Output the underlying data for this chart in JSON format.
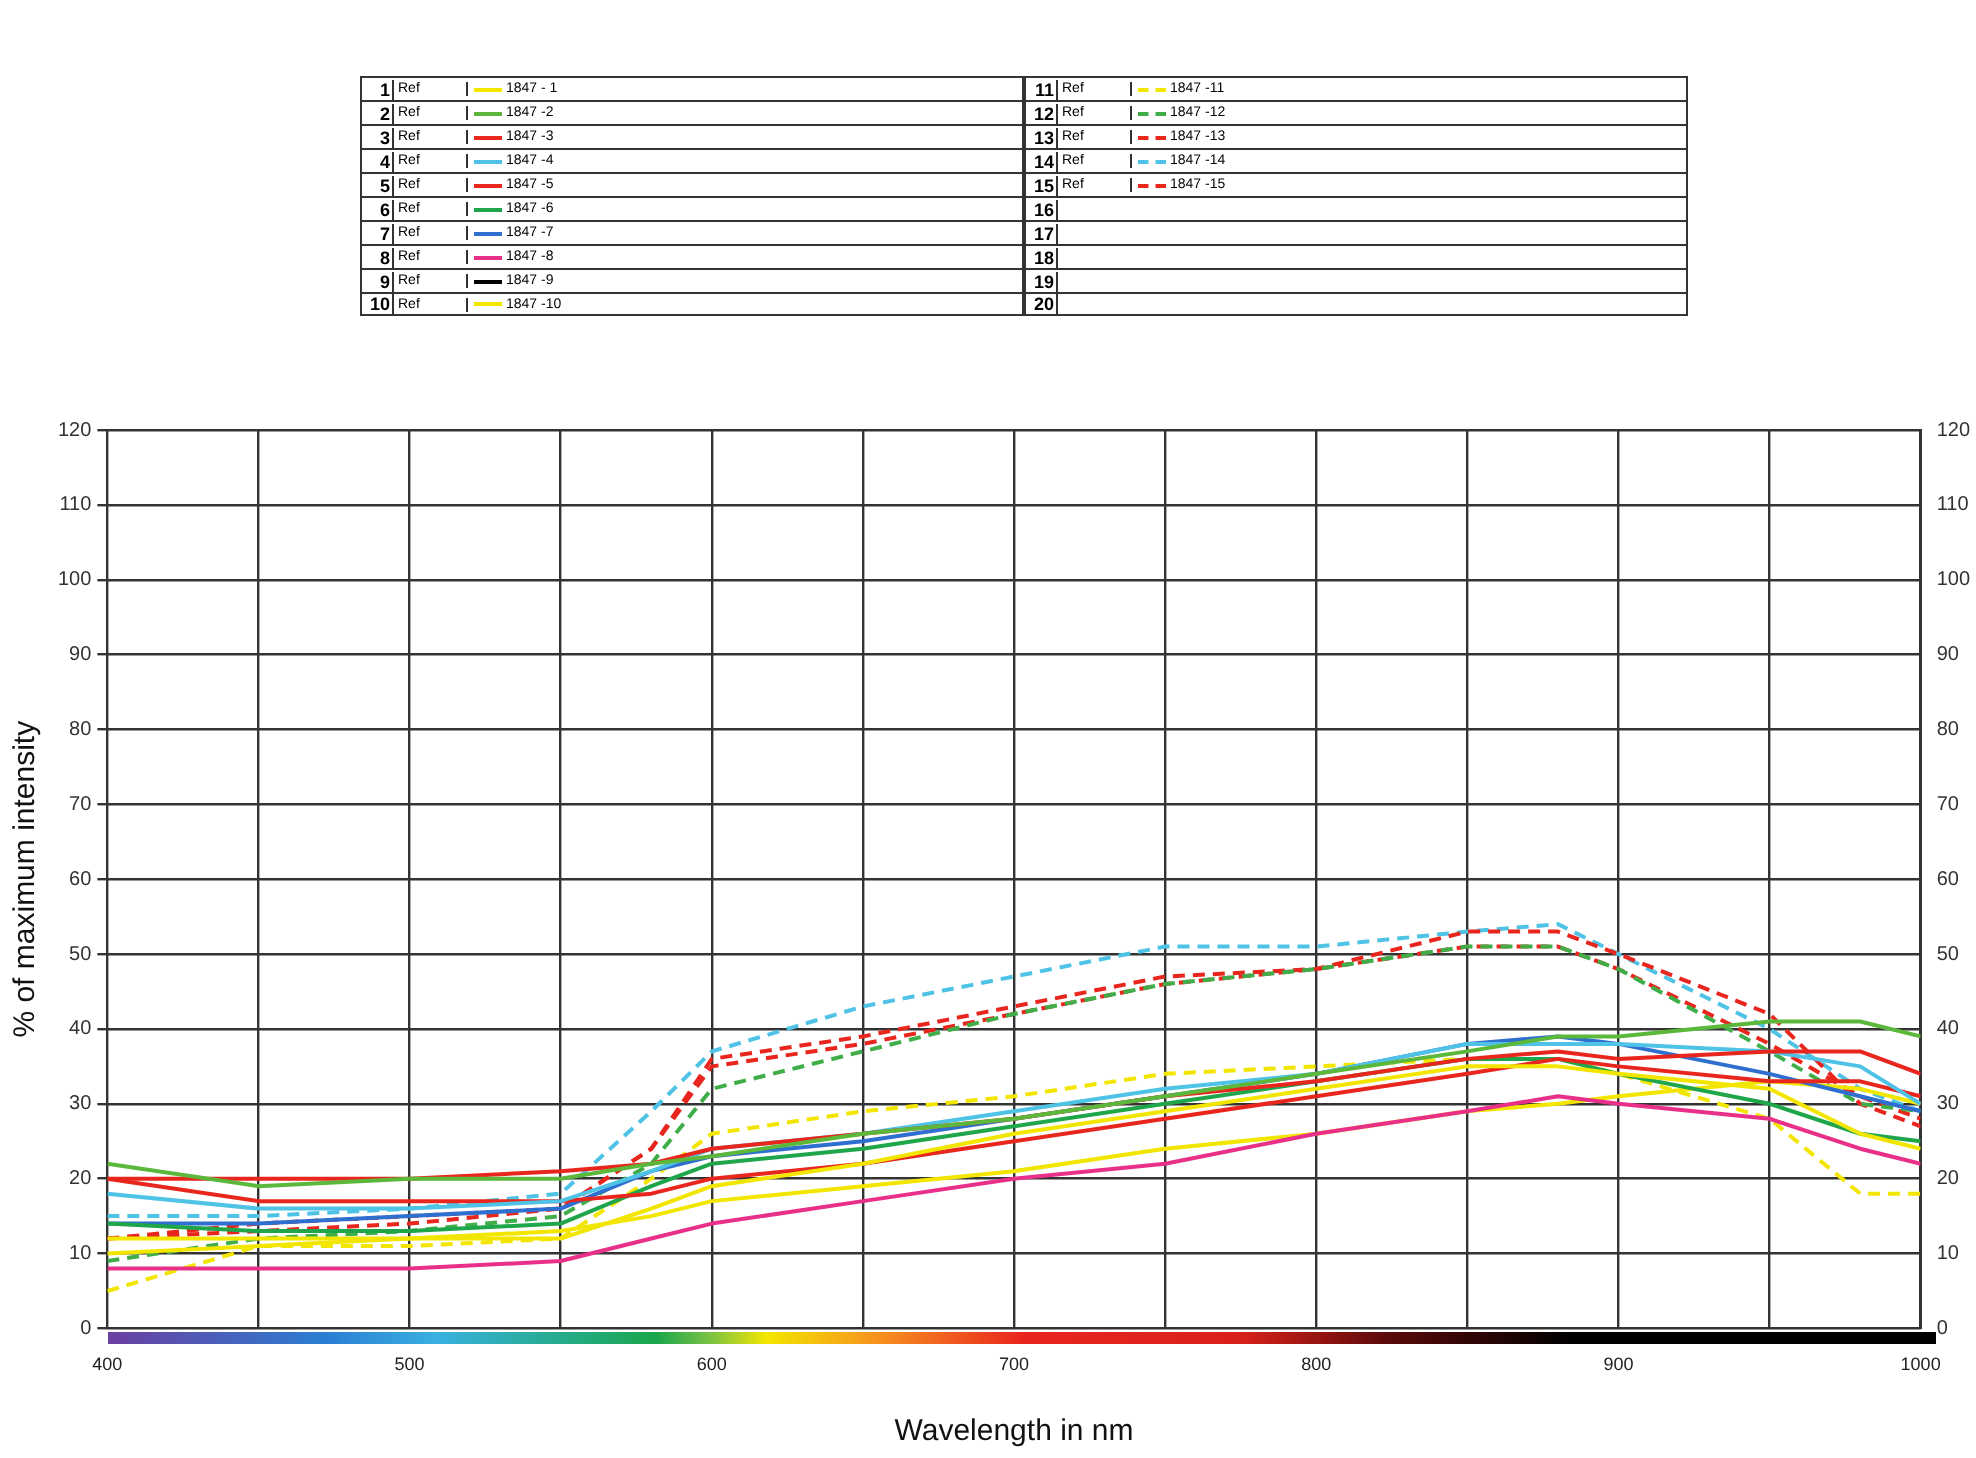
{
  "chart_data": {
    "type": "line",
    "xlabel": "Wavelength in nm",
    "ylabel": "% of maximum intensity",
    "legend_title": "Ref",
    "legend": "top",
    "grid": true,
    "marker": "none",
    "x": [
      400,
      450,
      500,
      550,
      580,
      600,
      650,
      700,
      750,
      800,
      850,
      880,
      900,
      950,
      980,
      1000
    ],
    "xlim": [
      400,
      1000
    ],
    "xticks": [
      400,
      {
        "value": 450,
        "label": null
      },
      500,
      {
        "value": 550,
        "label": null
      },
      600,
      {
        "value": 650,
        "label": null
      },
      700,
      {
        "value": 750,
        "label": null
      },
      800,
      {
        "value": 850,
        "label": null
      },
      900,
      {
        "value": 950,
        "label": null
      },
      1000
    ],
    "ylim": [
      0,
      120
    ],
    "yticks": [
      0,
      10,
      20,
      30,
      40,
      50,
      60,
      70,
      80,
      90,
      100,
      110,
      120
    ],
    "y2lim": [
      0,
      120
    ],
    "y2ticks": [
      0,
      10,
      20,
      30,
      40,
      50,
      60,
      70,
      80,
      90,
      100,
      110,
      120
    ],
    "annotations": [
      "1",
      "2",
      "3",
      "4",
      "5",
      "6",
      "7",
      "8",
      "9",
      "10",
      "11",
      "12",
      "13",
      "14",
      "15",
      "16",
      "17",
      "18",
      "19",
      "20"
    ],
    "series": [
      {
        "name": "1847 - 1",
        "color": "#f2e600",
        "line_style": "solid",
        "values": [
          12,
          12,
          12,
          12,
          16,
          19,
          22,
          26,
          29,
          32,
          35,
          35,
          34,
          32,
          26,
          24
        ]
      },
      {
        "name": "1847 -2",
        "color": "#5cb83a",
        "line_style": "solid",
        "values": [
          22,
          19,
          20,
          20,
          22,
          23,
          26,
          28,
          31,
          34,
          37,
          39,
          39,
          41,
          41,
          39
        ]
      },
      {
        "name": "1847 -3",
        "color": "#e8261e",
        "line_style": "solid",
        "values": [
          20,
          20,
          20,
          21,
          22,
          24,
          26,
          28,
          31,
          33,
          36,
          37,
          36,
          37,
          37,
          34
        ]
      },
      {
        "name": "1847 -4",
        "color": "#4fc3e6",
        "line_style": "solid",
        "values": [
          18,
          16,
          16,
          17,
          21,
          24,
          26,
          29,
          32,
          34,
          38,
          38,
          38,
          37,
          35,
          30
        ]
      },
      {
        "name": "1847 -5",
        "color": "#e8261e",
        "line_style": "solid",
        "values": [
          20,
          17,
          17,
          17,
          18,
          20,
          22,
          25,
          28,
          31,
          34,
          36,
          35,
          33,
          33,
          31
        ]
      },
      {
        "name": "1847 -6",
        "color": "#1fa64a",
        "line_style": "solid",
        "values": [
          14,
          13,
          13,
          14,
          19,
          22,
          24,
          27,
          30,
          33,
          36,
          36,
          34,
          30,
          26,
          25
        ]
      },
      {
        "name": "1847 -7",
        "color": "#2f6fd0",
        "line_style": "solid",
        "values": [
          14,
          14,
          15,
          16,
          21,
          23,
          25,
          28,
          31,
          34,
          38,
          39,
          38,
          34,
          31,
          29
        ]
      },
      {
        "name": "1847 -8",
        "color": "#e8308a",
        "line_style": "solid",
        "values": [
          8,
          8,
          8,
          9,
          12,
          14,
          17,
          20,
          22,
          26,
          29,
          31,
          30,
          28,
          24,
          22
        ]
      },
      {
        "name": "1847 -9",
        "color": "#000000",
        "line_style": "solid",
        "values": [
          null,
          null,
          null,
          null,
          null,
          null,
          null,
          null,
          null,
          null,
          null,
          null,
          null,
          null,
          null,
          null
        ]
      },
      {
        "name": "1847 -10",
        "color": "#f2e600",
        "line_style": "solid",
        "values": [
          10,
          11,
          12,
          13,
          15,
          17,
          19,
          21,
          24,
          26,
          29,
          30,
          31,
          33,
          32,
          30
        ]
      },
      {
        "name": "1847 -11",
        "color": "#f2e600",
        "line_style": "dashed",
        "values": [
          5,
          11,
          11,
          12,
          20,
          26,
          29,
          31,
          34,
          35,
          36,
          36,
          34,
          28,
          18,
          18
        ]
      },
      {
        "name": "1847 -12",
        "color": "#3fae49",
        "line_style": "dashed",
        "values": [
          9,
          12,
          13,
          15,
          22,
          32,
          37,
          42,
          46,
          48,
          51,
          51,
          48,
          37,
          30,
          29
        ]
      },
      {
        "name": "1847 -13",
        "color": "#e8261e",
        "line_style": "dashed",
        "values": [
          12,
          14,
          15,
          16,
          24,
          36,
          39,
          43,
          47,
          48,
          53,
          53,
          50,
          42,
          30,
          27
        ]
      },
      {
        "name": "1847 -14",
        "color": "#4fc3e6",
        "line_style": "dashed",
        "values": [
          15,
          15,
          16,
          18,
          29,
          37,
          43,
          47,
          51,
          51,
          53,
          54,
          50,
          40,
          32,
          29
        ]
      },
      {
        "name": "1847 -15",
        "color": "#e8261e",
        "line_style": "dashed",
        "values": [
          12,
          13,
          14,
          16,
          24,
          35,
          38,
          42,
          46,
          48,
          51,
          51,
          48,
          38,
          31,
          28
        ]
      }
    ]
  }
}
